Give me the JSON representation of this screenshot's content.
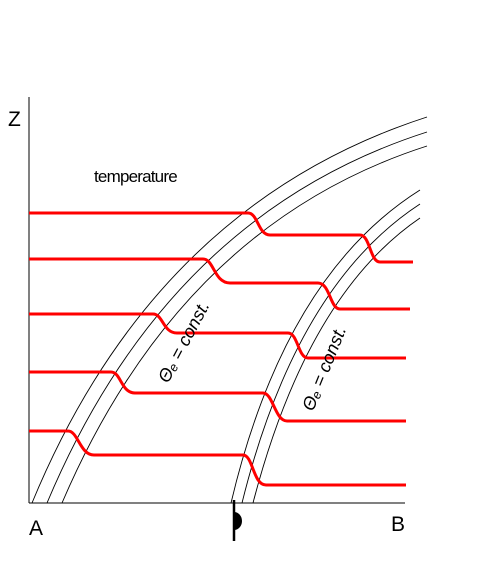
{
  "axis": {
    "z_label": "Z",
    "left_label": "A",
    "right_label": "B"
  },
  "annotations": {
    "temperature": "temperature",
    "theta_left": "Θₑ = const.",
    "theta_right": "Θₑ = const."
  }
}
